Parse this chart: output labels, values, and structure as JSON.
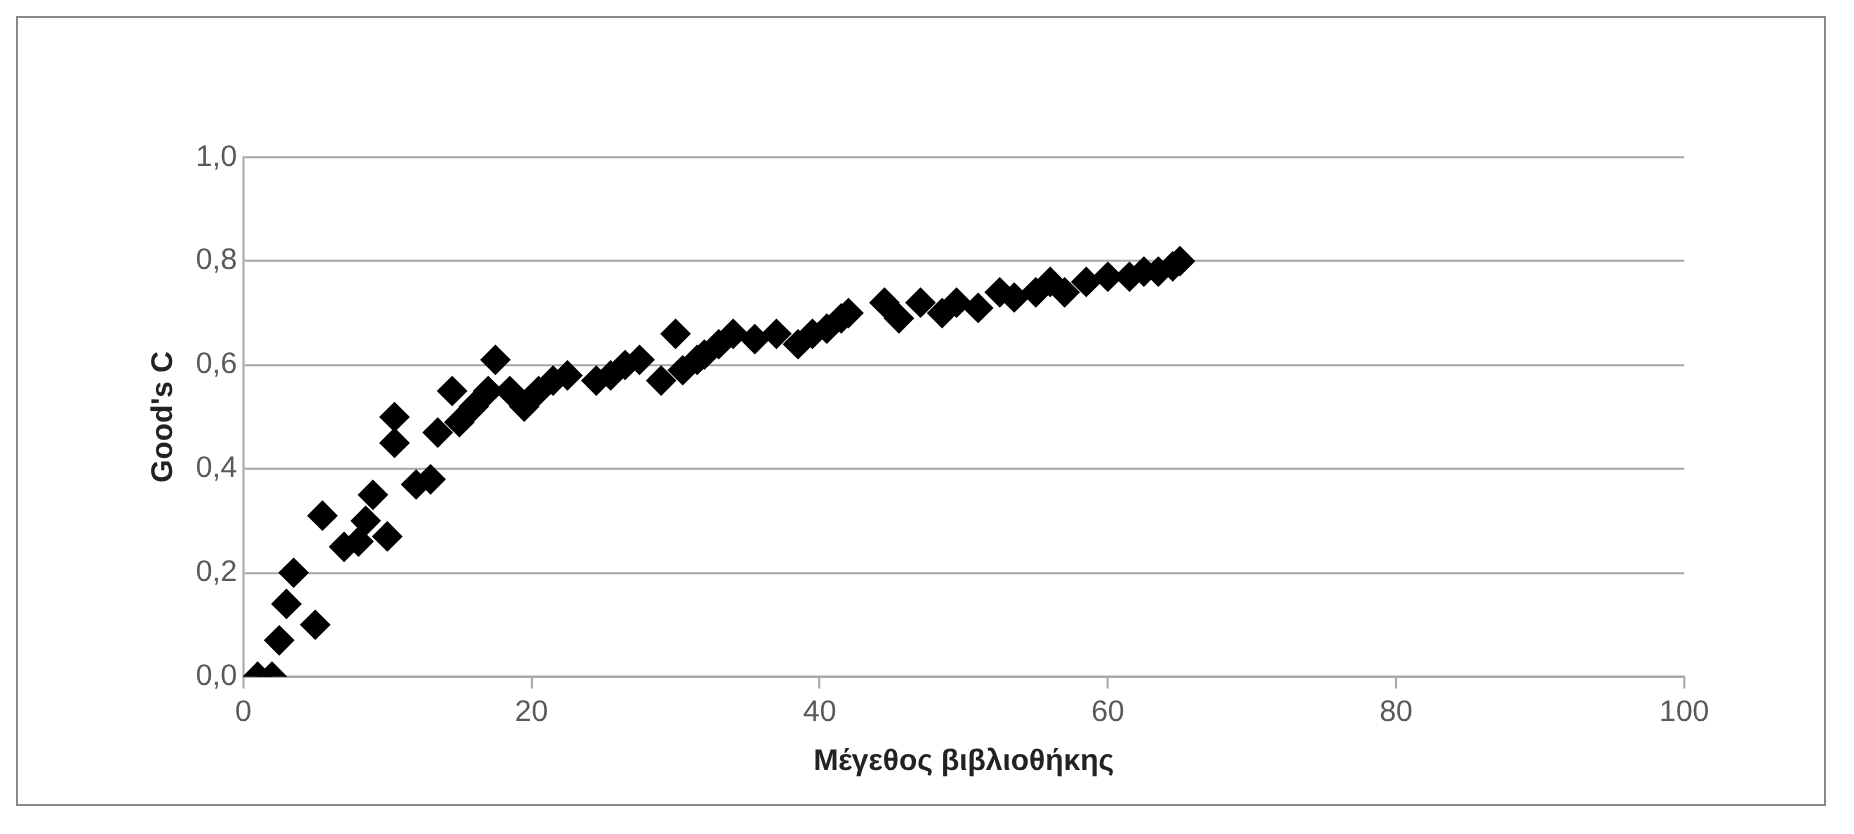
{
  "chart_data": {
    "type": "scatter",
    "xlabel": "Μέγεθος βιβλιοθήκης",
    "ylabel": "Good's C",
    "x": [
      1,
      2,
      2.5,
      3,
      3.5,
      5,
      5.5,
      7,
      8,
      8.5,
      9,
      10,
      10.5,
      10.5,
      12,
      13,
      13.5,
      14.5,
      15,
      16,
      17,
      17.5,
      18.5,
      19.5,
      20.5,
      21.5,
      22.5,
      24.5,
      25.5,
      26.5,
      27.5,
      29,
      30,
      30.5,
      31.5,
      32,
      33,
      34,
      35.5,
      37,
      38.5,
      39.5,
      40.5,
      41.5,
      42,
      44.5,
      45.5,
      47,
      48.5,
      49.5,
      51,
      52.5,
      53.5,
      55,
      56,
      57,
      58.5,
      60,
      61.5,
      62.5,
      63.5,
      64.5,
      65
    ],
    "values": [
      0.0,
      0.0,
      0.07,
      0.14,
      0.2,
      0.1,
      0.31,
      0.25,
      0.26,
      0.3,
      0.35,
      0.27,
      0.45,
      0.5,
      0.37,
      0.38,
      0.47,
      0.55,
      0.49,
      0.52,
      0.55,
      0.61,
      0.55,
      0.52,
      0.55,
      0.57,
      0.58,
      0.57,
      0.58,
      0.6,
      0.61,
      0.57,
      0.66,
      0.59,
      0.61,
      0.62,
      0.64,
      0.66,
      0.65,
      0.66,
      0.64,
      0.66,
      0.67,
      0.69,
      0.7,
      0.72,
      0.69,
      0.72,
      0.7,
      0.72,
      0.71,
      0.74,
      0.73,
      0.74,
      0.76,
      0.74,
      0.76,
      0.77,
      0.77,
      0.78,
      0.78,
      0.79,
      0.8
    ],
    "color": "#000000",
    "marker": "diamond",
    "xlim": [
      0,
      100
    ],
    "xticks": [
      0,
      20,
      40,
      60,
      80,
      100
    ],
    "ylim": [
      0,
      1
    ],
    "yticks": [
      {
        "value": 0,
        "label": "0,0"
      },
      {
        "value": 0.2,
        "label": "0,2"
      },
      {
        "value": 0.4,
        "label": "0,4"
      },
      {
        "value": 0.6,
        "label": "0,6"
      },
      {
        "value": 0.8,
        "label": "0,8"
      },
      {
        "value": 1,
        "label": "1,0"
      }
    ],
    "grid": "y",
    "legend": false
  }
}
